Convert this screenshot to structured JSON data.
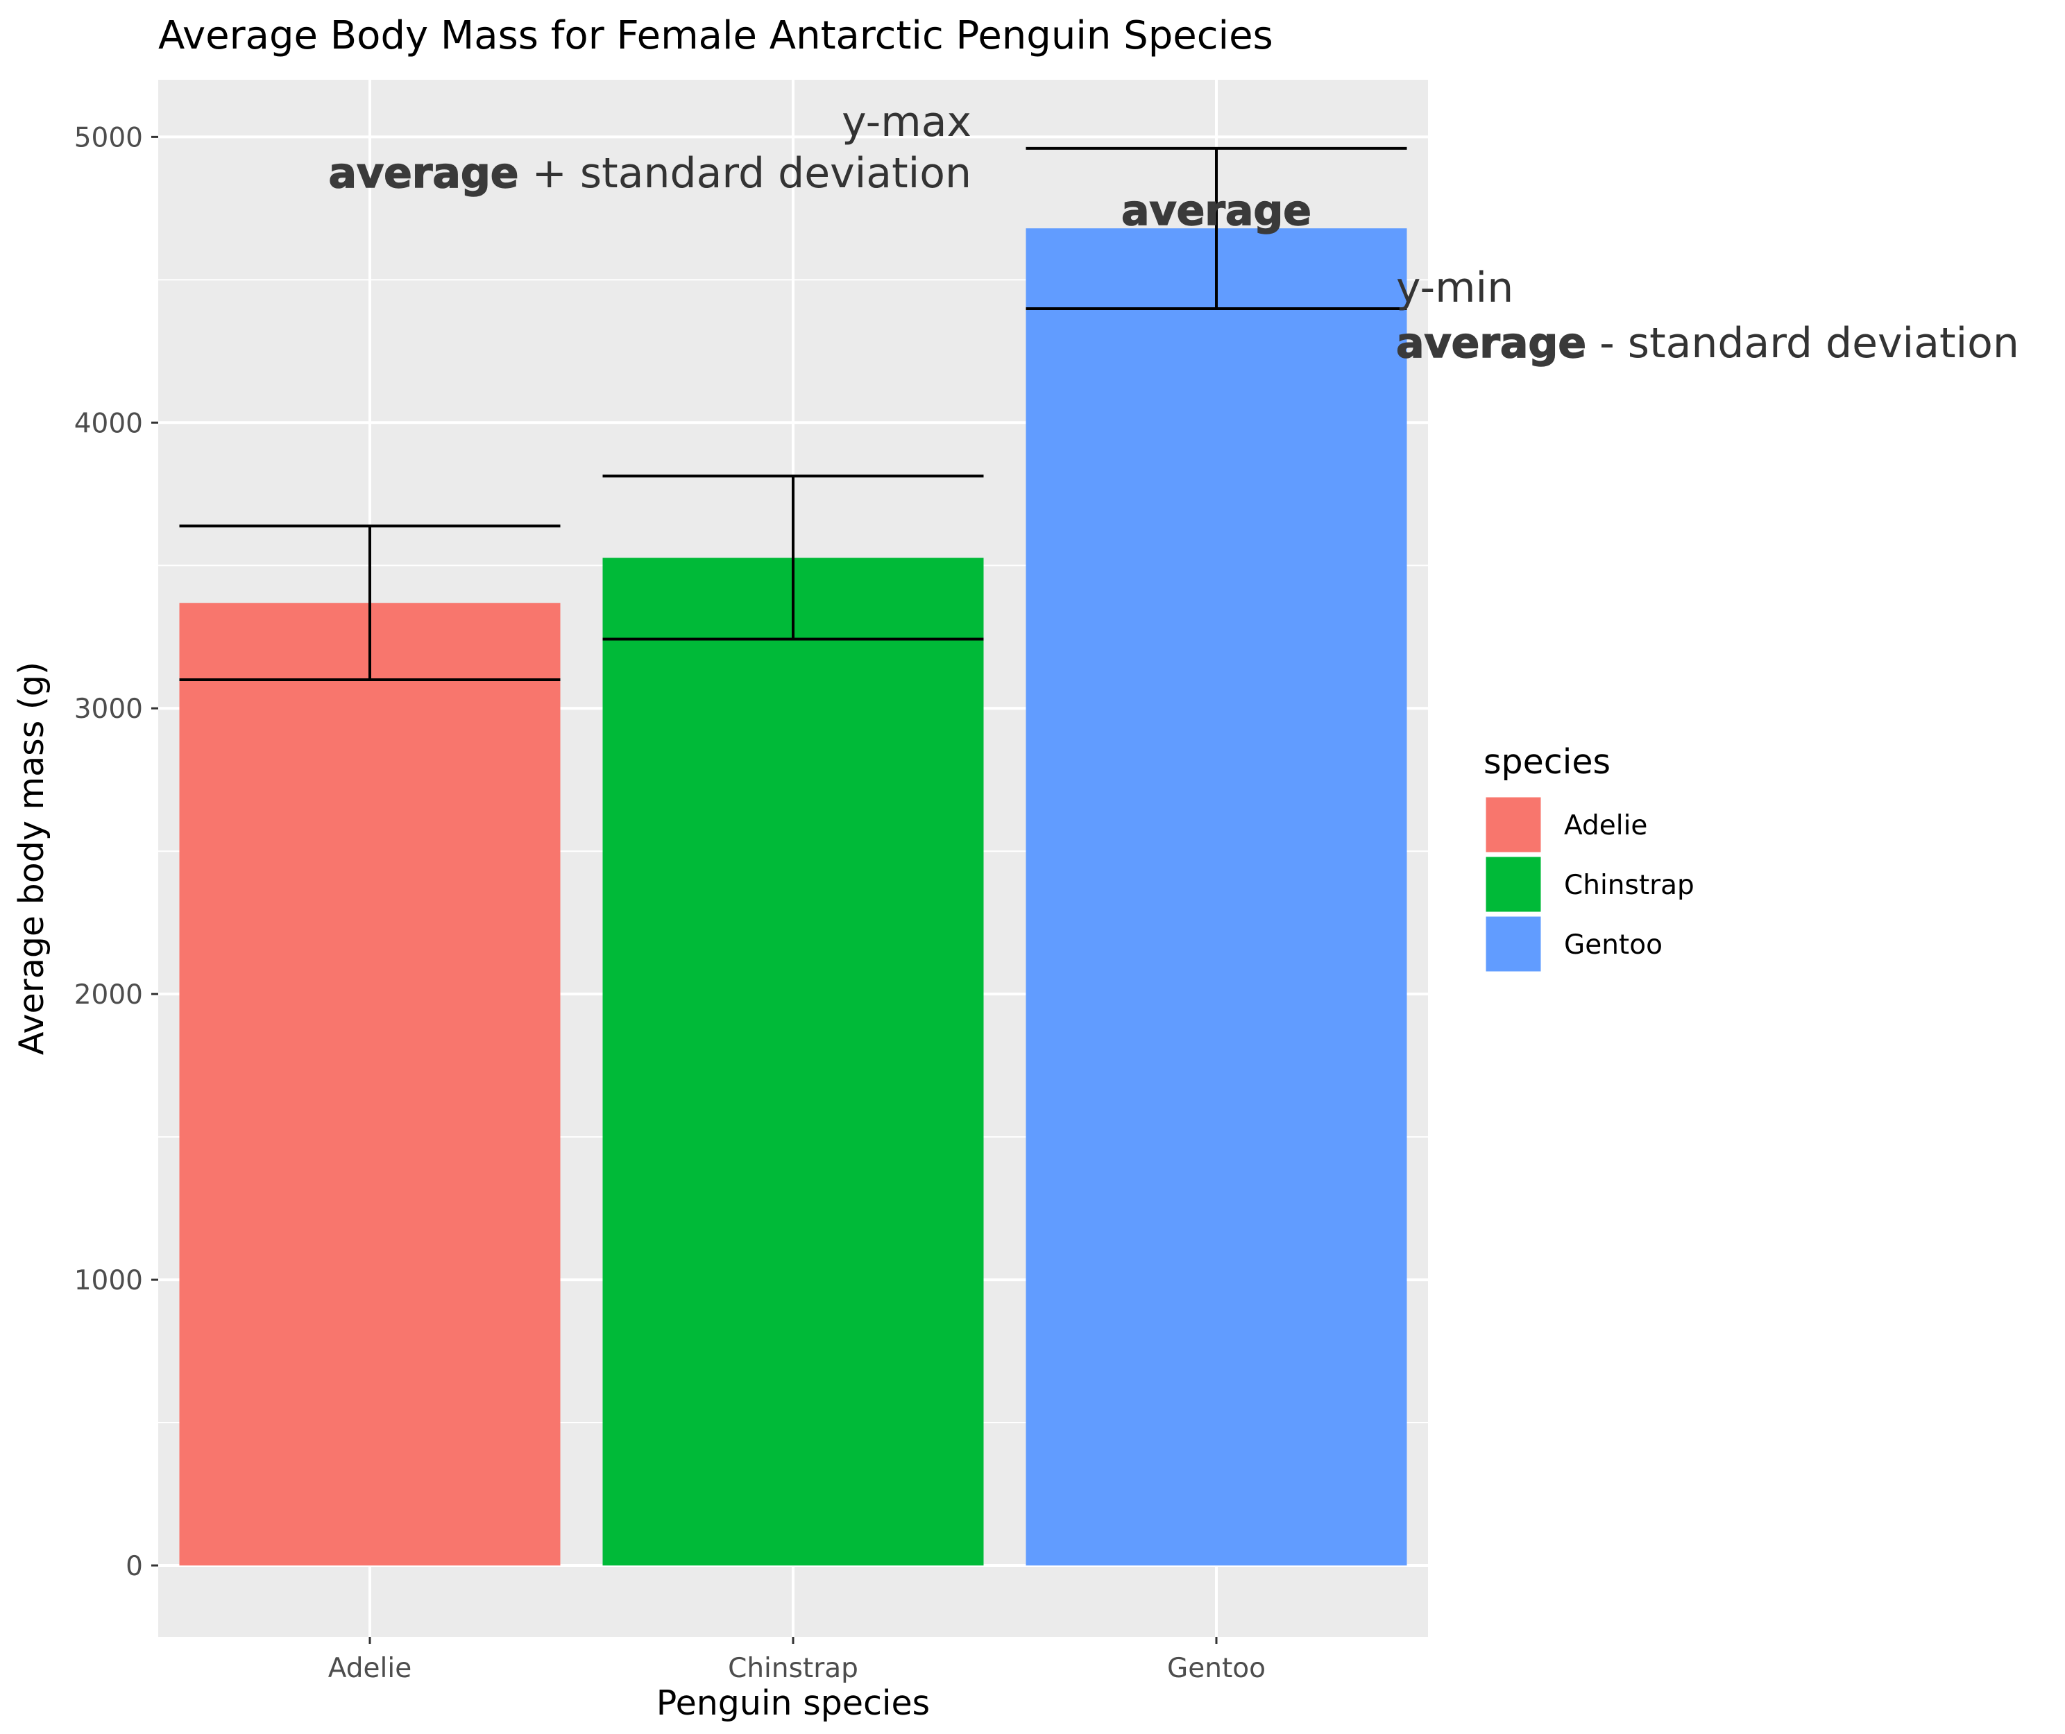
{
  "chart_data": {
    "type": "bar",
    "title": "Average Body Mass for Female Antarctic Penguin Species",
    "xlabel": "Penguin species",
    "ylabel": "Average body mass (g)",
    "categories": [
      "Adelie",
      "Chinstrap",
      "Gentoo"
    ],
    "values": [
      3369,
      3527,
      4680
    ],
    "error_bars": {
      "ymin": [
        3100,
        3242,
        4399
      ],
      "ymax": [
        3638,
        3813,
        4960
      ]
    },
    "colors": [
      "#F8766D",
      "#00BA38",
      "#619CFF"
    ],
    "ylim": [
      -250,
      5200
    ],
    "yticks": [
      0,
      1000,
      2000,
      3000,
      4000,
      5000
    ],
    "ytick_labels": [
      "0",
      "1000",
      "2000",
      "3000",
      "4000",
      "5000"
    ],
    "grid": true,
    "panel_background": "#EBEBEB",
    "legend": {
      "title": "species",
      "position": "right",
      "entries": [
        "Adelie",
        "Chinstrap",
        "Gentoo"
      ]
    },
    "annotations": {
      "ymax_line1": "y-max",
      "ymax_bold": "average",
      "ymax_rest": " + standard deviation",
      "avg_label": "average",
      "ymin_line1": "y-min",
      "ymin_bold": "average",
      "ymin_rest": " - standard deviation"
    }
  }
}
